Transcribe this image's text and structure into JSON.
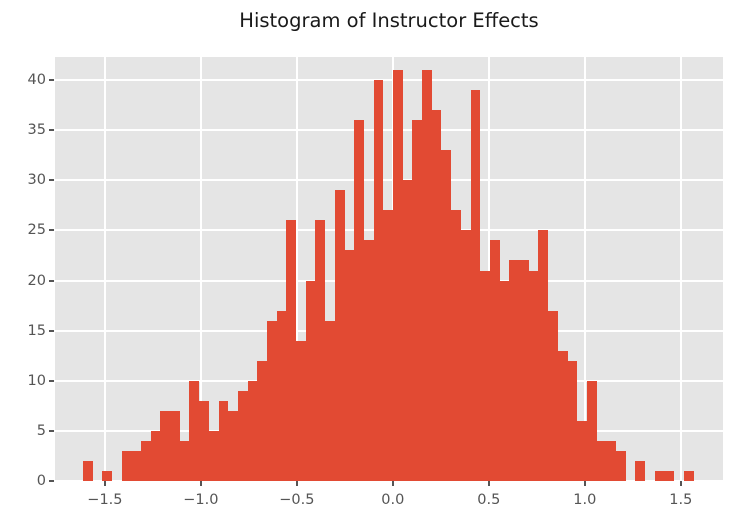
{
  "chart_data": {
    "type": "bar",
    "subtype": "histogram",
    "title": "Histogram of Instructor Effects",
    "xlabel": "",
    "ylabel": "",
    "bin_start": -1.615,
    "bin_width": 0.0505,
    "counts": [
      2,
      0,
      1,
      0,
      3,
      3,
      4,
      5,
      7,
      7,
      4,
      10,
      8,
      5,
      8,
      7,
      9,
      10,
      12,
      16,
      17,
      26,
      14,
      20,
      26,
      16,
      29,
      23,
      36,
      24,
      40,
      27,
      41,
      30,
      36,
      41,
      37,
      33,
      27,
      25,
      39,
      21,
      24,
      20,
      22,
      22,
      21,
      25,
      17,
      13,
      12,
      6,
      10,
      4,
      4,
      3,
      0,
      2,
      0,
      1,
      1,
      0,
      1
    ],
    "xlim": [
      -1.76,
      1.72
    ],
    "ylim": [
      0,
      42.3
    ],
    "x_ticks": [
      -1.5,
      -1.0,
      -0.5,
      0.0,
      0.5,
      1.0,
      1.5
    ],
    "x_tick_labels": [
      "−1.5",
      "−1.0",
      "−0.5",
      "0.0",
      "0.5",
      "1.0",
      "1.5"
    ],
    "y_ticks": [
      0,
      5,
      10,
      15,
      20,
      25,
      30,
      35,
      40
    ],
    "y_tick_labels": [
      "0",
      "5",
      "10",
      "15",
      "20",
      "25",
      "30",
      "35",
      "40"
    ],
    "grid": true,
    "legend": null,
    "colors": {
      "bar": "#E24A33",
      "plot_background": "#e5e5e5",
      "gridline": "#ffffff",
      "tick_label": "#555555",
      "title": "#1a1a1a"
    }
  }
}
